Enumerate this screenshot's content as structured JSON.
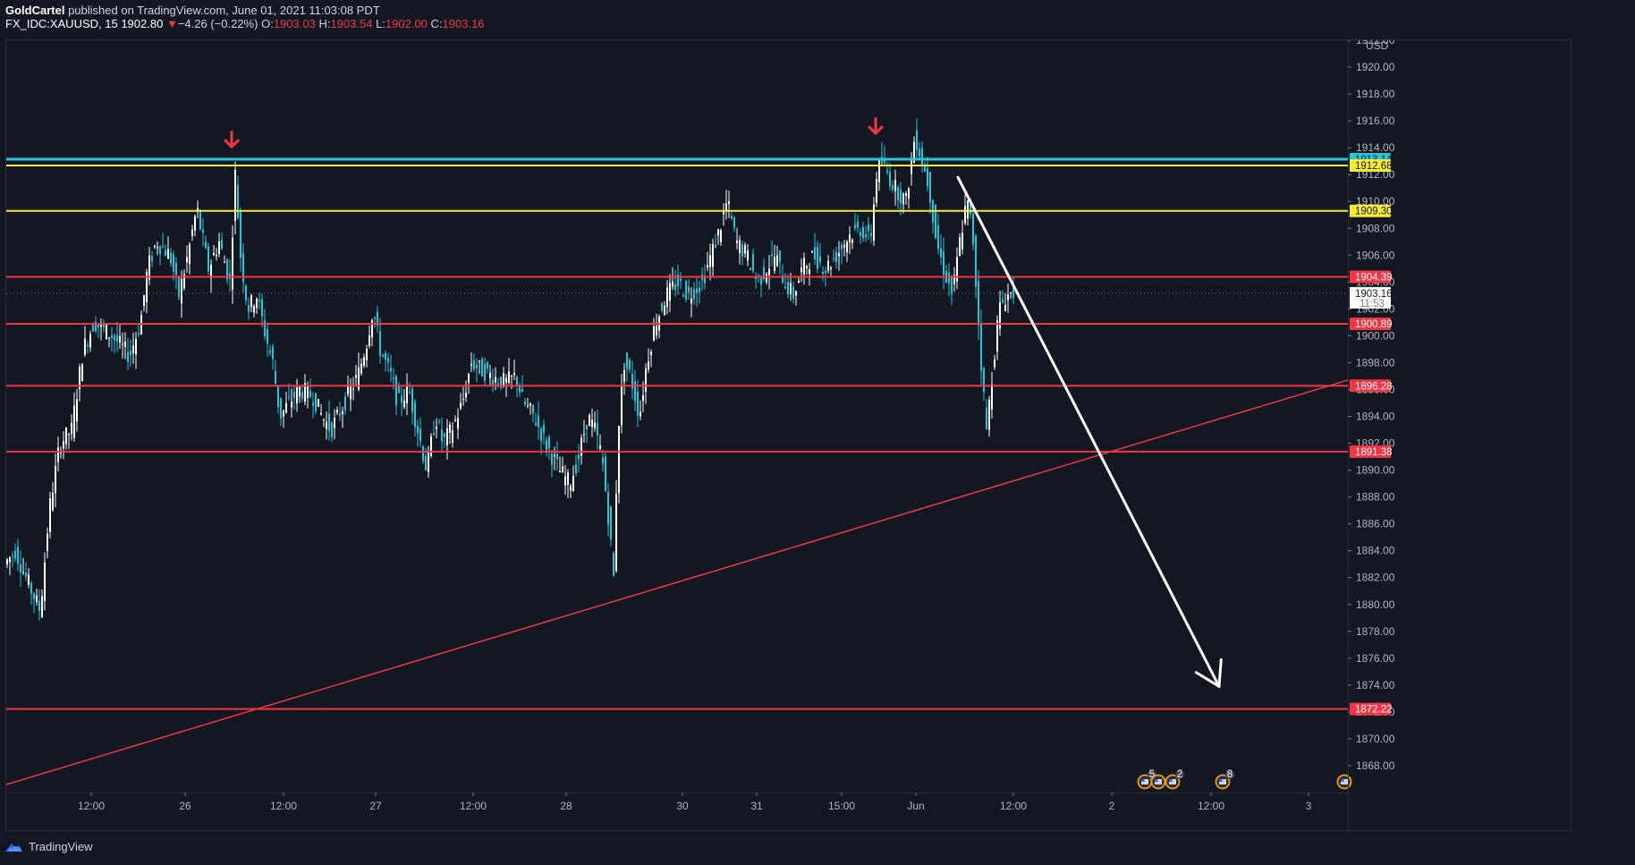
{
  "header": {
    "author": "GoldCartel",
    "published": " published on TradingView.com, June 01, 2021 11:03:08 PDT",
    "symbol": "FX_IDC:XAUUSD, 15",
    "last": "1902.80",
    "change_arrow": "▼",
    "change": "−4.26 (−0.22%)",
    "o_label": "O:",
    "o": "1903.03",
    "h_label": "H:",
    "h": "1903.54",
    "l_label": "L:",
    "l": "1902.00",
    "c_label": "C:",
    "c": "1903.16"
  },
  "footer": {
    "brand": "TradingView",
    "logo_icon": "tradingview-cloud-icon"
  },
  "colors": {
    "background": "#131722",
    "cyan_level": "#26c6da",
    "yellow_level": "#f5eb3b",
    "red_level": "#f23645",
    "arrow_red": "#f23645",
    "projection_arrow": "#ffffff",
    "candle_up": "#ffffff",
    "candle_down": "#26c6da"
  },
  "chart_data": {
    "type": "candlestick",
    "currency": "USD",
    "ylim": [
      1866,
      1922
    ],
    "y_ticks": [
      1868,
      1870,
      1872,
      1874,
      1876,
      1878,
      1880,
      1882,
      1884,
      1886,
      1888,
      1890,
      1892,
      1894,
      1896,
      1898,
      1900,
      1902,
      1904,
      1906,
      1908,
      1910,
      1912,
      1914,
      1916,
      1918,
      1920,
      1922
    ],
    "x_labels": [
      "12:00",
      "26",
      "12:00",
      "27",
      "12:00",
      "28",
      "30",
      "31",
      "15:00",
      "Jun",
      "12:00",
      "2",
      "12:00",
      "3"
    ],
    "price_path": [
      [
        0,
        1883
      ],
      [
        12,
        1884
      ],
      [
        24,
        1882
      ],
      [
        40,
        1879.5
      ],
      [
        50,
        1887
      ],
      [
        62,
        1892
      ],
      [
        75,
        1893
      ],
      [
        88,
        1899
      ],
      [
        100,
        1901
      ],
      [
        120,
        1900
      ],
      [
        140,
        1898.5
      ],
      [
        152,
        1901
      ],
      [
        160,
        1905
      ],
      [
        170,
        1907
      ],
      [
        185,
        1906
      ],
      [
        195,
        1903
      ],
      [
        205,
        1906
      ],
      [
        215,
        1909.5
      ],
      [
        228,
        1905
      ],
      [
        240,
        1907
      ],
      [
        252,
        1904
      ],
      [
        258,
        1912
      ],
      [
        264,
        1906
      ],
      [
        272,
        1902
      ],
      [
        282,
        1903
      ],
      [
        292,
        1900
      ],
      [
        300,
        1898
      ],
      [
        308,
        1894
      ],
      [
        318,
        1895
      ],
      [
        330,
        1896
      ],
      [
        345,
        1895.5
      ],
      [
        355,
        1894
      ],
      [
        365,
        1893
      ],
      [
        380,
        1895
      ],
      [
        395,
        1897
      ],
      [
        405,
        1899.5
      ],
      [
        412,
        1902
      ],
      [
        420,
        1899
      ],
      [
        432,
        1897
      ],
      [
        440,
        1895
      ],
      [
        452,
        1896
      ],
      [
        462,
        1893
      ],
      [
        472,
        1890
      ],
      [
        482,
        1894
      ],
      [
        490,
        1892
      ],
      [
        500,
        1893
      ],
      [
        512,
        1895
      ],
      [
        522,
        1898
      ],
      [
        532,
        1897.5
      ],
      [
        545,
        1897
      ],
      [
        560,
        1896.5
      ],
      [
        572,
        1897
      ],
      [
        580,
        1895
      ],
      [
        592,
        1894
      ],
      [
        605,
        1892
      ],
      [
        620,
        1890
      ],
      [
        632,
        1889
      ],
      [
        642,
        1891
      ],
      [
        652,
        1894
      ],
      [
        660,
        1893
      ],
      [
        668,
        1891
      ],
      [
        676,
        1886
      ],
      [
        681,
        1882
      ],
      [
        686,
        1893
      ],
      [
        693,
        1898
      ],
      [
        700,
        1897
      ],
      [
        710,
        1894
      ],
      [
        718,
        1898
      ],
      [
        728,
        1901
      ],
      [
        740,
        1903
      ],
      [
        752,
        1904
      ],
      [
        765,
        1903
      ],
      [
        780,
        1904
      ],
      [
        790,
        1906
      ],
      [
        800,
        1908
      ],
      [
        808,
        1910
      ],
      [
        818,
        1907
      ],
      [
        830,
        1906
      ],
      [
        842,
        1904
      ],
      [
        852,
        1905
      ],
      [
        862,
        1906
      ],
      [
        872,
        1904
      ],
      [
        882,
        1903
      ],
      [
        892,
        1905
      ],
      [
        905,
        1906
      ],
      [
        918,
        1905
      ],
      [
        930,
        1906
      ],
      [
        945,
        1907.5
      ],
      [
        958,
        1908
      ],
      [
        968,
        1907
      ],
      [
        975,
        1912
      ],
      [
        980,
        1913
      ],
      [
        988,
        1912
      ],
      [
        996,
        1911
      ],
      [
        1008,
        1910
      ],
      [
        1018,
        1915
      ],
      [
        1026,
        1913
      ],
      [
        1034,
        1911
      ],
      [
        1042,
        1907
      ],
      [
        1050,
        1905
      ],
      [
        1060,
        1903
      ],
      [
        1068,
        1907
      ],
      [
        1076,
        1910
      ],
      [
        1082,
        1908
      ],
      [
        1088,
        1902
      ],
      [
        1093,
        1897
      ],
      [
        1098,
        1893
      ],
      [
        1104,
        1897
      ],
      [
        1112,
        1902
      ],
      [
        1120,
        1903
      ],
      [
        1127,
        1903.2
      ]
    ],
    "candle_range": {
      "x_start": 0,
      "x_end": 1127,
      "step": 3
    },
    "horizontal_levels": [
      {
        "price": 1913.14,
        "label": "1913.14",
        "color": "#26c6da",
        "text_color": "#131722",
        "line": true,
        "width": 3
      },
      {
        "price": 1912.68,
        "label": "1912.68",
        "color": "#f5eb3b",
        "text_color": "#131722",
        "line": true,
        "width": 2
      },
      {
        "price": 1909.3,
        "label": "1909.30",
        "color": "#f5eb3b",
        "text_color": "#131722",
        "line": true,
        "width": 2
      },
      {
        "price": 1904.39,
        "label": "1904.39",
        "color": "#f23645",
        "text_color": "#ffffff",
        "line": true,
        "width": 2
      },
      {
        "price": 1903.16,
        "label": "1903.16",
        "color": "#ffffff",
        "text_color": "#131722",
        "line": false,
        "width": 1,
        "sublabel": "11:53"
      },
      {
        "price": 1900.89,
        "label": "1900.89",
        "color": "#f23645",
        "text_color": "#ffffff",
        "line": true,
        "width": 2
      },
      {
        "price": 1896.28,
        "label": "1896.28",
        "color": "#f23645",
        "text_color": "#ffffff",
        "line": true,
        "width": 2
      },
      {
        "price": 1891.38,
        "label": "1891.38",
        "color": "#f23645",
        "text_color": "#ffffff",
        "line": true,
        "width": 2
      },
      {
        "price": 1872.22,
        "label": "1872.22",
        "color": "#f23645",
        "text_color": "#ffffff",
        "line": true,
        "width": 2
      }
    ],
    "trendline": {
      "from": [
        0,
        1866.6
      ],
      "to": [
        1500,
        1896.7
      ],
      "color": "#f23645"
    },
    "projection_arrow": {
      "from": [
        1064,
        1911.8
      ],
      "to": [
        1356,
        1873.9
      ],
      "color": "#ffffff"
    },
    "marker_arrows": [
      {
        "x": 252,
        "price": 1914.6,
        "color": "#f23645"
      },
      {
        "x": 972,
        "price": 1915.6,
        "color": "#f23645"
      }
    ],
    "event_badges": [
      {
        "x": 1273,
        "count": "5"
      },
      {
        "x": 1288,
        "count": ""
      },
      {
        "x": 1304,
        "count": "2"
      },
      {
        "x": 1360,
        "count": "8"
      },
      {
        "x": 1496,
        "count": ""
      }
    ]
  }
}
